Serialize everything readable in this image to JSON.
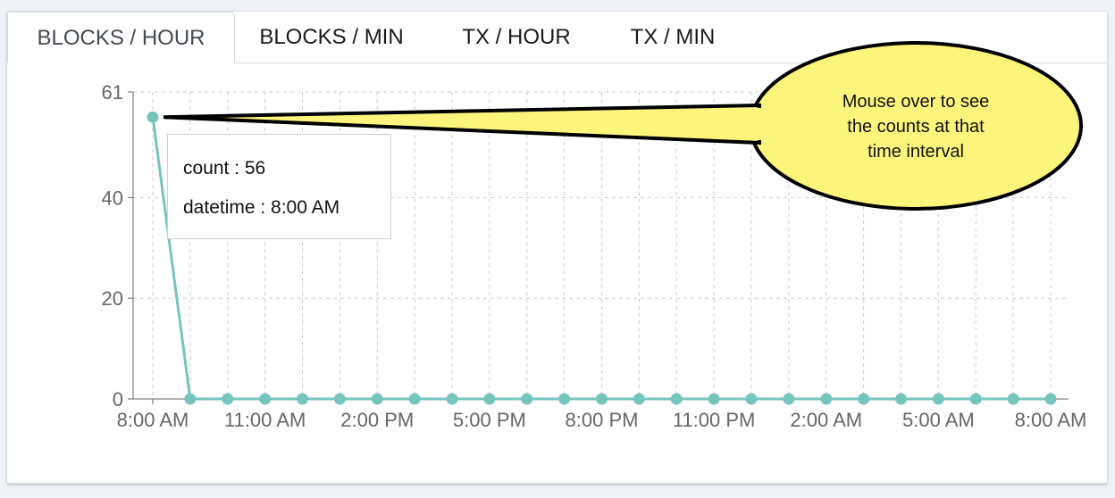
{
  "tabs": [
    {
      "label": "BLOCKS / HOUR",
      "active": true
    },
    {
      "label": "BLOCKS / MIN",
      "active": false
    },
    {
      "label": "TX / HOUR",
      "active": false
    },
    {
      "label": "TX / MIN",
      "active": false
    }
  ],
  "tooltip": {
    "count": "count : 56",
    "datetime": "datetime : 8:00 AM"
  },
  "callout": {
    "text_line1": "Mouse over to see",
    "text_line2": "the counts at that",
    "text_line3": "time interval"
  },
  "colors": {
    "series": "#76c5bd",
    "grid": "#cccccc",
    "axis": "#666666",
    "callout_fill": "#fdf47c"
  },
  "chart_data": {
    "type": "line",
    "x_tick_labels": [
      "8:00 AM",
      "11:00 AM",
      "2:00 PM",
      "5:00 PM",
      "8:00 PM",
      "11:00 PM",
      "2:00 AM",
      "5:00 AM",
      "8:00 AM"
    ],
    "x_hours": [
      0,
      1,
      2,
      3,
      4,
      5,
      6,
      7,
      8,
      9,
      10,
      11,
      12,
      13,
      14,
      15,
      16,
      17,
      18,
      19,
      20,
      21,
      22,
      23,
      24
    ],
    "y_values": [
      56,
      0,
      0,
      0,
      0,
      0,
      0,
      0,
      0,
      0,
      0,
      0,
      0,
      0,
      0,
      0,
      0,
      0,
      0,
      0,
      0,
      0,
      0,
      0,
      0
    ],
    "y_ticks": [
      0,
      20,
      40,
      61
    ],
    "ylim": [
      0,
      61
    ],
    "xlim": [
      0,
      24
    ],
    "grid": true
  }
}
